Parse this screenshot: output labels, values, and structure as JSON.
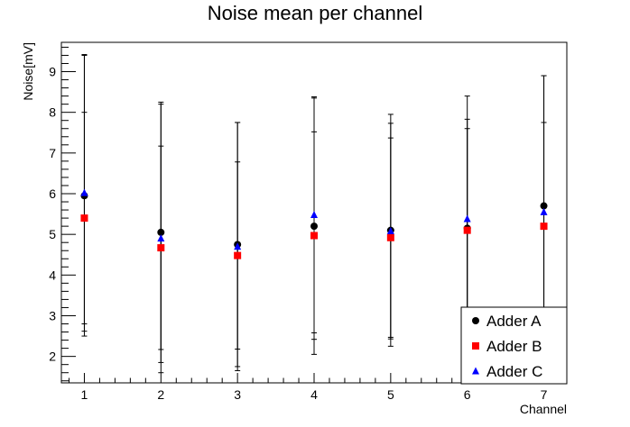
{
  "chart_data": {
    "type": "scatter",
    "title": "Noise mean per channel",
    "xlabel": "Channel",
    "ylabel": "Noise[mV]",
    "xlim": [
      0.7,
      7.3
    ],
    "ylim": [
      1.35,
      9.72
    ],
    "x_ticks": [
      1,
      2,
      3,
      4,
      5,
      6,
      7
    ],
    "y_ticks": [
      2,
      3,
      4,
      5,
      6,
      7,
      8,
      9
    ],
    "grid": false,
    "legend_position": "bottom-right",
    "series": [
      {
        "name": "Adder A",
        "marker": "circle",
        "color": "#000000",
        "x": [
          1,
          2,
          3,
          4,
          5,
          6,
          7
        ],
        "y": [
          5.95,
          5.05,
          4.75,
          5.2,
          5.1,
          5.15,
          5.7
        ],
        "err": [
          3.45,
          3.2,
          3.0,
          3.15,
          2.85,
          3.25,
          3.2
        ]
      },
      {
        "name": "Adder B",
        "marker": "square",
        "color": "#ff0000",
        "x": [
          1,
          2,
          3,
          4,
          5,
          6,
          7
        ],
        "y": [
          5.4,
          4.67,
          4.48,
          4.97,
          4.92,
          5.1,
          5.2
        ],
        "err": [
          2.6,
          2.5,
          2.3,
          2.55,
          2.45,
          2.5,
          2.55
        ]
      },
      {
        "name": "Adder C",
        "marker": "triangle",
        "color": "#0000ff",
        "x": [
          1,
          2,
          3,
          4,
          5,
          6,
          7
        ],
        "y": [
          6.02,
          4.9,
          4.7,
          5.48,
          5.08,
          5.38,
          5.55
        ],
        "err": [
          3.4,
          3.3,
          3.05,
          2.9,
          2.65,
          2.45,
          3.35
        ]
      }
    ]
  }
}
